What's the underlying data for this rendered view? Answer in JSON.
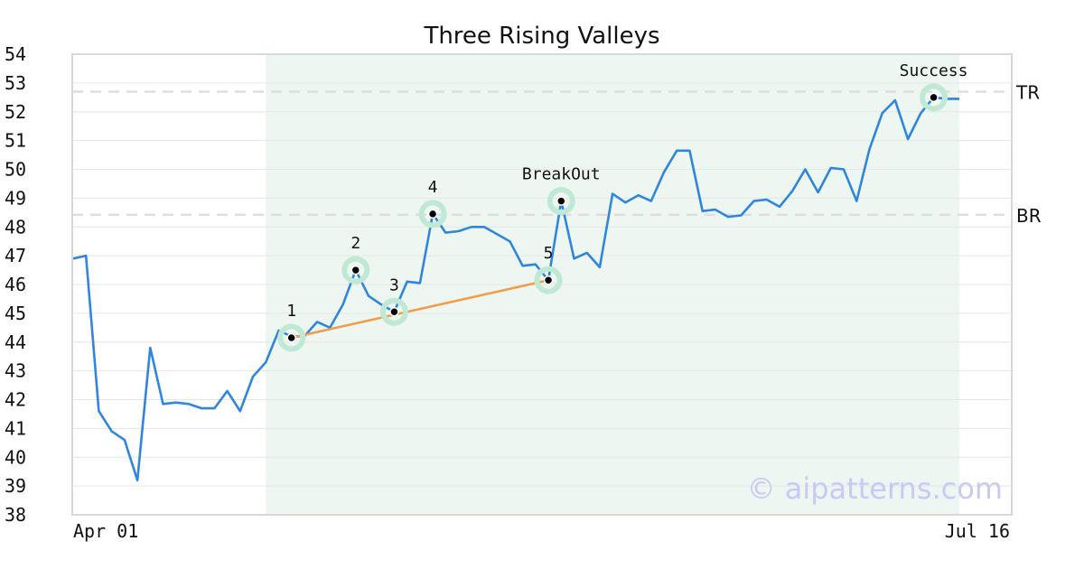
{
  "chart_data": {
    "type": "line",
    "title": "Three Rising Valleys",
    "ylim": [
      38,
      54
    ],
    "y_ticks": [
      38,
      39,
      40,
      41,
      42,
      43,
      44,
      45,
      46,
      47,
      48,
      49,
      50,
      51,
      52,
      53,
      54
    ],
    "x_tick_labels": [
      "Apr 01",
      "Jul 16"
    ],
    "grid": "horizontal",
    "series": [
      {
        "color": "#2f86e0",
        "values": [
          46.9,
          47.0,
          41.6,
          40.9,
          40.6,
          39.2,
          43.8,
          41.85,
          41.9,
          41.85,
          41.7,
          41.7,
          42.3,
          41.6,
          42.8,
          43.3,
          44.4,
          44.2,
          44.2,
          44.7,
          44.5,
          45.3,
          46.5,
          45.6,
          45.3,
          45.05,
          46.1,
          46.05,
          48.45,
          47.8,
          47.85,
          48.0,
          48.0,
          47.75,
          47.5,
          46.65,
          46.7,
          46.15,
          48.9,
          46.9,
          47.1,
          46.6,
          49.15,
          48.85,
          49.1,
          48.9,
          49.9,
          50.65,
          50.65,
          48.55,
          48.6,
          48.35,
          48.4,
          48.9,
          48.95,
          48.7,
          49.25,
          50.0,
          49.2,
          50.05,
          50.0,
          48.9,
          50.7,
          51.95,
          52.4,
          51.05,
          51.95,
          52.5,
          52.45,
          52.45
        ]
      }
    ],
    "pattern_region": {
      "from_index": 15,
      "to_index": 69,
      "color": "#eef6f2"
    },
    "trendline": {
      "from_index": 17,
      "to_index": 37,
      "from_value": 44.15,
      "to_value": 46.15,
      "color": "#f39c45"
    },
    "annotations": [
      {
        "label": "1",
        "index": 17,
        "value": 44.15,
        "label_pos": "above"
      },
      {
        "label": "2",
        "index": 22,
        "value": 46.5,
        "label_pos": "above"
      },
      {
        "label": "3",
        "index": 25,
        "value": 45.05,
        "label_pos": "above"
      },
      {
        "label": "4",
        "index": 28,
        "value": 48.45,
        "label_pos": "above"
      },
      {
        "label": "5",
        "index": 37,
        "value": 46.15,
        "label_pos": "above"
      },
      {
        "label": "BreakOut",
        "index": 38,
        "value": 48.9,
        "label_pos": "above"
      },
      {
        "label": "Success",
        "index": 67,
        "value": 52.5,
        "label_pos": "above"
      }
    ],
    "levels": [
      {
        "label": "TR",
        "value": 52.7
      },
      {
        "label": "BR",
        "value": 48.42
      }
    ],
    "marker_halo_color": "#bfe9d5",
    "watermark": "© aipatterns.com"
  }
}
